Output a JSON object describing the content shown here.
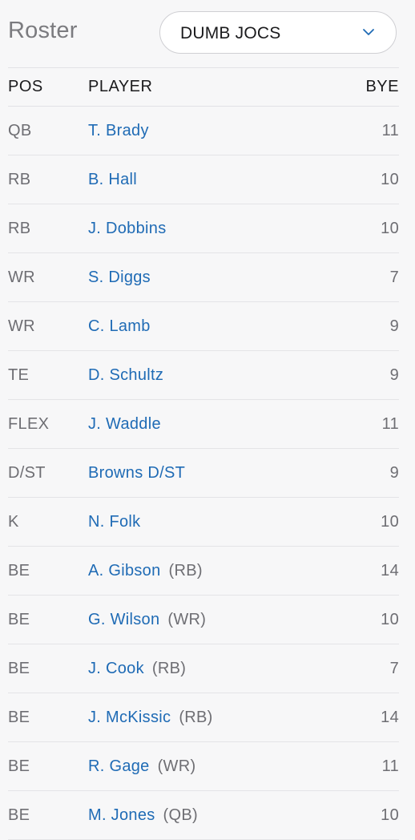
{
  "header": {
    "title": "Roster",
    "team_select": {
      "value": "DUMB JOCS",
      "icon": "chevron-down-icon"
    }
  },
  "columns": {
    "pos": "POS",
    "player": "PLAYER",
    "bye": "BYE"
  },
  "roster": [
    {
      "pos": "QB",
      "player": "T. Brady",
      "elig": "",
      "bye": "11"
    },
    {
      "pos": "RB",
      "player": "B. Hall",
      "elig": "",
      "bye": "10"
    },
    {
      "pos": "RB",
      "player": "J. Dobbins",
      "elig": "",
      "bye": "10"
    },
    {
      "pos": "WR",
      "player": "S. Diggs",
      "elig": "",
      "bye": "7"
    },
    {
      "pos": "WR",
      "player": "C. Lamb",
      "elig": "",
      "bye": "9"
    },
    {
      "pos": "TE",
      "player": "D. Schultz",
      "elig": "",
      "bye": "9"
    },
    {
      "pos": "FLEX",
      "player": "J. Waddle",
      "elig": "",
      "bye": "11"
    },
    {
      "pos": "D/ST",
      "player": "Browns D/ST",
      "elig": "",
      "bye": "9"
    },
    {
      "pos": "K",
      "player": "N. Folk",
      "elig": "",
      "bye": "10"
    },
    {
      "pos": "BE",
      "player": "A. Gibson",
      "elig": "(RB)",
      "bye": "14"
    },
    {
      "pos": "BE",
      "player": "G. Wilson",
      "elig": "(WR)",
      "bye": "10"
    },
    {
      "pos": "BE",
      "player": "J. Cook",
      "elig": "(RB)",
      "bye": "7"
    },
    {
      "pos": "BE",
      "player": "J. McKissic",
      "elig": "(RB)",
      "bye": "14"
    },
    {
      "pos": "BE",
      "player": "R. Gage",
      "elig": "(WR)",
      "bye": "11"
    },
    {
      "pos": "BE",
      "player": "M. Jones",
      "elig": "(QB)",
      "bye": "10"
    }
  ],
  "colors": {
    "link": "#1f6bb5",
    "muted": "#6e6e73",
    "background": "#f7f7f8"
  }
}
